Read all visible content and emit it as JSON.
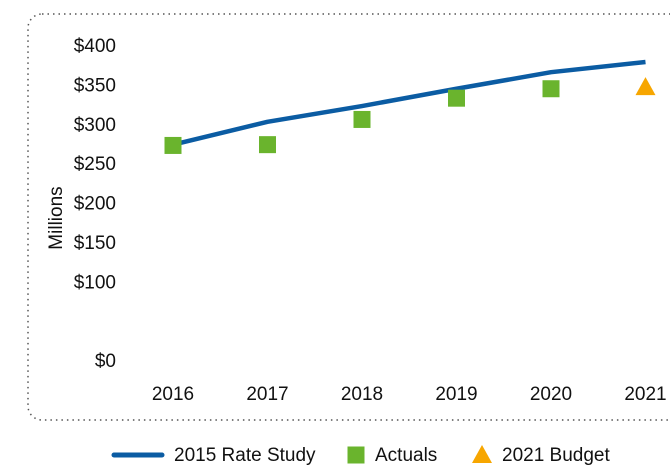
{
  "chart_data": {
    "type": "line",
    "y_label": "Millions",
    "categories": [
      "2016",
      "2017",
      "2018",
      "2019",
      "2020",
      "2021"
    ],
    "series": [
      {
        "name": "2015 Rate Study",
        "color": "#0b5ca3",
        "marker": "line",
        "values": [
          276,
          305,
          325,
          347,
          368,
          381
        ]
      },
      {
        "name": "Actuals",
        "color": "#6ab42d",
        "marker": "square",
        "values": [
          275,
          276,
          308,
          335,
          347,
          null
        ]
      },
      {
        "name": "2021 Budget",
        "color": "#f7a600",
        "marker": "triangle",
        "values": [
          null,
          null,
          null,
          null,
          null,
          349
        ]
      }
    ],
    "ylim": [
      0,
      400
    ],
    "yticks": [
      {
        "value": 0,
        "label": "$0"
      },
      {
        "value": 100,
        "label": "$100"
      },
      {
        "value": 150,
        "label": "$150"
      },
      {
        "value": 200,
        "label": "$200"
      },
      {
        "value": 250,
        "label": "$250"
      },
      {
        "value": 300,
        "label": "$300"
      },
      {
        "value": 350,
        "label": "$350"
      },
      {
        "value": 400,
        "label": "$400"
      }
    ],
    "grid": false
  }
}
